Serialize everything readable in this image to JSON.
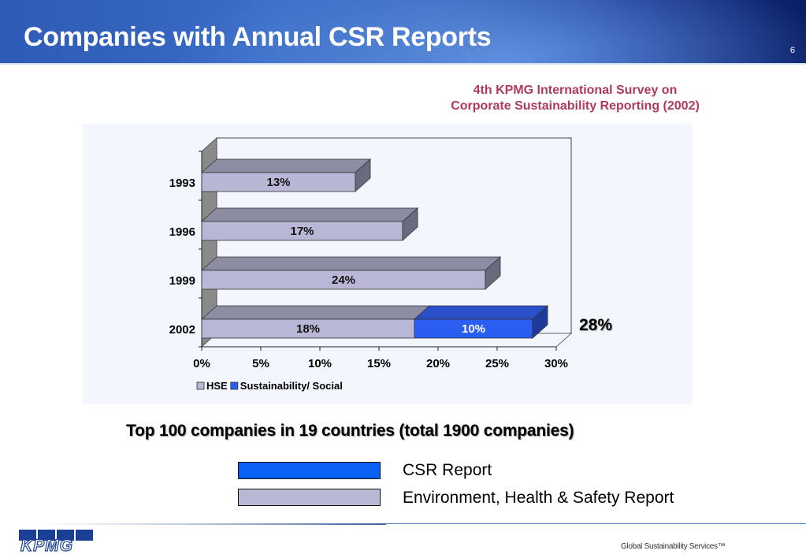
{
  "header": {
    "title": "Companies with Annual CSR Reports",
    "page_number": "6"
  },
  "survey_label": {
    "line1": "4th KPMG International Survey on",
    "line2": "Corporate Sustainability Reporting (2002)"
  },
  "chart_data": {
    "type": "bar",
    "orientation": "horizontal",
    "stacked": true,
    "style": "3d",
    "title": "",
    "xlabel": "",
    "ylabel": "",
    "categories": [
      "1993",
      "1996",
      "1999",
      "2002"
    ],
    "series": [
      {
        "name": "HSE",
        "values": [
          13,
          17,
          24,
          18
        ],
        "labels": [
          "13%",
          "17%",
          "24%",
          "18%"
        ],
        "color": "#b8b8d6"
      },
      {
        "name": "Sustainability/ Social",
        "values": [
          0,
          0,
          0,
          10
        ],
        "labels": [
          "",
          "",
          "",
          "10%"
        ],
        "color": "#2a5ef0"
      }
    ],
    "totals_annotation": {
      "category": "2002",
      "label": "28%"
    },
    "xlim": [
      0,
      30
    ],
    "x_ticks": [
      "0%",
      "5%",
      "10%",
      "15%",
      "20%",
      "25%",
      "30%"
    ],
    "x_tick_values": [
      0,
      5,
      10,
      15,
      20,
      25,
      30
    ],
    "legend": {
      "position": "bottom-left",
      "entries": [
        "HSE",
        "Sustainability/ Social"
      ]
    },
    "grid": false
  },
  "caption": "Top 100 companies in 19 countries (total 1900 companies)",
  "legend_boxes": [
    {
      "label": "CSR Report",
      "color": "#0a60f5"
    },
    {
      "label": "Environment, Health & Safety Report",
      "color": "#b8b8d4"
    }
  ],
  "footer": {
    "logo_text": "KPMG",
    "tagline": "Global Sustainability Services™"
  }
}
